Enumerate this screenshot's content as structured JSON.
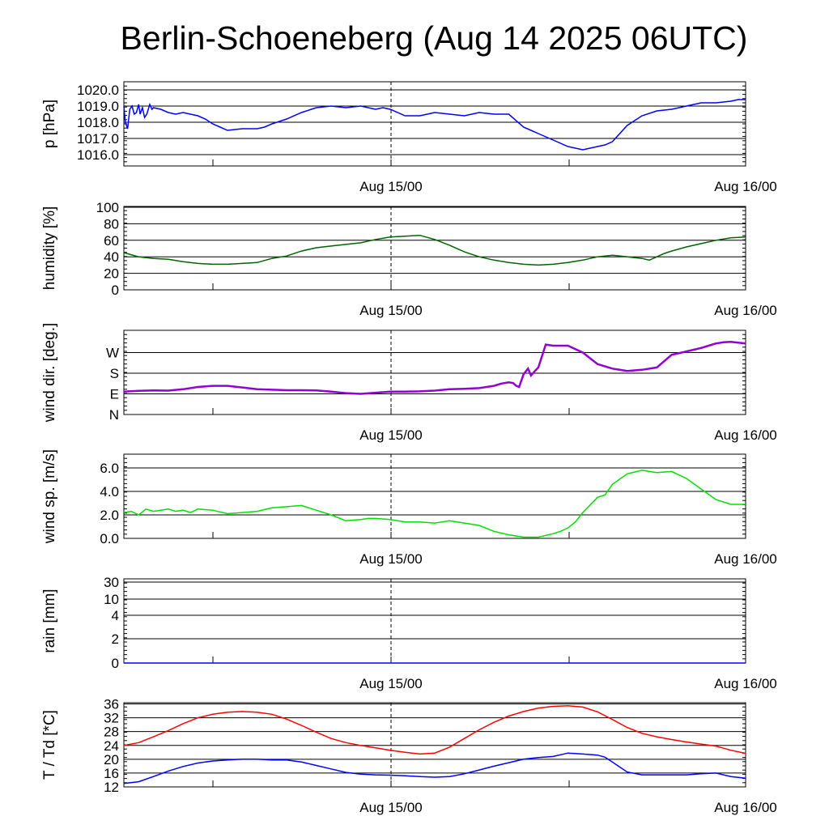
{
  "title": "Berlin-Schoeneberg (Aug 14 2025 06UTC)",
  "x_labels": [
    "Aug 15/00",
    "Aug 16/00"
  ],
  "chart_data": [
    {
      "type": "line",
      "ylabel": "p [hPa]",
      "x_unit": "hours since Aug 14 06UTC",
      "xlim": [
        0,
        42
      ],
      "ylim": [
        1015.3,
        1020.5
      ],
      "yticks": [
        {
          "v": 1016.0,
          "label": "1016.0"
        },
        {
          "v": 1017.0,
          "label": "1017.0"
        },
        {
          "v": 1018.0,
          "label": "1018.0"
        },
        {
          "v": 1019.0,
          "label": "1019.0"
        },
        {
          "v": 1020.0,
          "label": "1020.0"
        }
      ],
      "series": [
        {
          "color": "#0000ff",
          "x": [
            0,
            0.1,
            0.25,
            0.4,
            0.55,
            0.7,
            0.85,
            1.0,
            1.1,
            1.25,
            1.4,
            1.55,
            1.75,
            1.9,
            2.0,
            2.5,
            3.0,
            3.5,
            4.0,
            5.0,
            5.5,
            6.0,
            6.5,
            7.0,
            8.0,
            9.0,
            9.5,
            10.0,
            11.0,
            12.0,
            13.0,
            14.0,
            15.0,
            16.0,
            16.5,
            17.0,
            17.5,
            18.0,
            19.0,
            20.0,
            21.0,
            22.0,
            23.0,
            24.0,
            25.0,
            26.0,
            27.0,
            27.5,
            28.0,
            29.0,
            30.0,
            31.0,
            32.0,
            32.5,
            33.0,
            34.0,
            35.0,
            36.0,
            37.0,
            38.0,
            39.0,
            40.0,
            41.0,
            41.5,
            42.0
          ],
          "y": [
            1019.0,
            1018.0,
            1017.6,
            1018.8,
            1019.0,
            1018.5,
            1018.6,
            1019.1,
            1018.5,
            1018.9,
            1018.3,
            1018.5,
            1019.1,
            1018.8,
            1018.9,
            1018.8,
            1018.6,
            1018.5,
            1018.6,
            1018.4,
            1018.2,
            1017.9,
            1017.7,
            1017.5,
            1017.6,
            1017.6,
            1017.7,
            1017.9,
            1018.2,
            1018.6,
            1018.9,
            1019.0,
            1018.9,
            1019.0,
            1018.9,
            1018.8,
            1018.9,
            1018.8,
            1018.4,
            1018.4,
            1018.6,
            1018.5,
            1018.4,
            1018.6,
            1018.5,
            1018.5,
            1017.7,
            1017.5,
            1017.3,
            1016.9,
            1016.5,
            1016.3,
            1016.5,
            1016.6,
            1016.8,
            1017.8,
            1018.4,
            1018.7,
            1018.8,
            1019.0,
            1019.2,
            1019.2,
            1019.3,
            1019.4,
            1019.4
          ]
        }
      ]
    },
    {
      "type": "line",
      "ylabel": "humidity [%]",
      "xlim": [
        0,
        42
      ],
      "ylim": [
        0,
        100
      ],
      "yticks": [
        {
          "v": 0,
          "label": "0"
        },
        {
          "v": 20,
          "label": "20"
        },
        {
          "v": 40,
          "label": "40"
        },
        {
          "v": 60,
          "label": "60"
        },
        {
          "v": 80,
          "label": "80"
        },
        {
          "v": 100,
          "label": "100"
        }
      ],
      "series": [
        {
          "color": "#006400",
          "x": [
            0,
            1,
            2,
            3,
            4,
            5,
            6,
            7,
            8,
            9,
            10,
            11,
            12,
            13,
            14,
            15,
            16,
            17,
            18,
            19,
            20,
            21,
            22,
            23,
            24,
            25,
            26,
            27,
            28,
            29,
            30,
            31,
            32,
            33,
            34,
            35,
            35.5,
            36,
            36.5,
            37,
            38,
            39,
            40,
            41,
            42
          ],
          "y": [
            45,
            40,
            38,
            37,
            34,
            32,
            31,
            31,
            32,
            33,
            38,
            41,
            47,
            51,
            53,
            55,
            57,
            61,
            64,
            65,
            66,
            61,
            54,
            46,
            40,
            36,
            33,
            31,
            30,
            31,
            33,
            36,
            40,
            42,
            40,
            38,
            36,
            40,
            44,
            47,
            52,
            56,
            60,
            63,
            64
          ]
        }
      ]
    },
    {
      "type": "scatter",
      "ylabel": "wind dir. [deg.]",
      "xlim": [
        0,
        42
      ],
      "ylim": [
        0,
        360
      ],
      "yticks": [
        {
          "v": 0,
          "label": "N"
        },
        {
          "v": 90,
          "label": "E"
        },
        {
          "v": 180,
          "label": "S"
        },
        {
          "v": 270,
          "label": "W"
        }
      ],
      "series": [
        {
          "color": "#9400d3",
          "x": [
            0,
            1,
            2,
            3,
            4,
            5,
            6,
            7,
            8,
            9,
            10,
            11,
            12,
            13,
            14,
            15,
            16,
            17,
            18,
            19,
            20,
            21,
            22,
            23,
            24,
            25,
            25.5,
            26.0,
            26.3,
            26.5,
            26.7,
            27.0,
            27.3,
            27.5,
            27.7,
            28.0,
            28.5,
            29.0,
            30.0,
            31.0,
            32.0,
            33.0,
            34.0,
            35.0,
            36.0,
            37.0,
            38.0,
            39.0,
            39.5,
            40.0,
            40.5,
            41.0,
            42.0
          ],
          "y": [
            100,
            103,
            105,
            104,
            110,
            120,
            125,
            125,
            118,
            110,
            108,
            106,
            106,
            105,
            100,
            93,
            90,
            95,
            100,
            100,
            101,
            104,
            110,
            112,
            115,
            125,
            135,
            140,
            137,
            125,
            120,
            175,
            200,
            170,
            185,
            205,
            305,
            300,
            300,
            270,
            220,
            200,
            190,
            195,
            205,
            260,
            275,
            290,
            300,
            310,
            315,
            317,
            310
          ]
        }
      ]
    },
    {
      "type": "line",
      "ylabel": "wind sp. [m/s]",
      "xlim": [
        0,
        42
      ],
      "ylim": [
        0,
        7
      ],
      "yticks": [
        {
          "v": 0,
          "label": "0.0"
        },
        {
          "v": 2,
          "label": "2.0"
        },
        {
          "v": 4,
          "label": "4.0"
        },
        {
          "v": 6,
          "label": "6.0"
        }
      ],
      "series": [
        {
          "color": "#00e000",
          "x": [
            0,
            0.5,
            1,
            1.5,
            2,
            2.5,
            3,
            3.5,
            4,
            4.5,
            5,
            6,
            7,
            8,
            9,
            10,
            11,
            12,
            13,
            14,
            15,
            16,
            16.5,
            17,
            18,
            19,
            20,
            21,
            22,
            23,
            24,
            25,
            26,
            27,
            28,
            29,
            29.5,
            30,
            30.5,
            31,
            32,
            32.5,
            33,
            34,
            35,
            36,
            37,
            38,
            39,
            40,
            41,
            42
          ],
          "y": [
            2.2,
            2.3,
            2.0,
            2.5,
            2.3,
            2.4,
            2.5,
            2.3,
            2.4,
            2.2,
            2.5,
            2.4,
            2.1,
            2.2,
            2.3,
            2.6,
            2.7,
            2.8,
            2.4,
            2.0,
            1.5,
            1.6,
            1.7,
            1.7,
            1.6,
            1.4,
            1.4,
            1.3,
            1.5,
            1.3,
            1.1,
            0.6,
            0.3,
            0.1,
            0.1,
            0.4,
            0.6,
            0.9,
            1.4,
            2.2,
            3.5,
            3.7,
            4.6,
            5.5,
            5.8,
            5.6,
            5.7,
            5.1,
            4.2,
            3.3,
            2.9,
            2.9
          ]
        }
      ]
    },
    {
      "type": "line",
      "ylabel": "rain [mm]",
      "xlim": [
        0,
        42
      ],
      "yscale": "nonlinear",
      "yticks": [
        {
          "v": 0,
          "label": "0"
        },
        {
          "v": 2,
          "label": "2"
        },
        {
          "v": 4,
          "label": "4"
        },
        {
          "v": 10,
          "label": "10"
        },
        {
          "v": 30,
          "label": "30"
        }
      ],
      "series": [
        {
          "color": "#0000ff",
          "x": [
            0,
            42
          ],
          "y": [
            0,
            0
          ]
        }
      ]
    },
    {
      "type": "line",
      "ylabel": "T / Td [*C]",
      "xlim": [
        0,
        42
      ],
      "ylim": [
        12,
        36
      ],
      "yticks": [
        {
          "v": 12,
          "label": "12"
        },
        {
          "v": 16,
          "label": "16"
        },
        {
          "v": 20,
          "label": "20"
        },
        {
          "v": 24,
          "label": "24"
        },
        {
          "v": 28,
          "label": "28"
        },
        {
          "v": 32,
          "label": "32"
        },
        {
          "v": 36,
          "label": "36"
        }
      ],
      "series": [
        {
          "color": "#ff0000",
          "x": [
            0,
            1,
            2,
            3,
            4,
            5,
            6,
            7,
            8,
            9,
            10,
            11,
            12,
            13,
            14,
            15,
            16,
            17,
            18,
            19,
            20,
            21,
            22,
            23,
            24,
            25,
            26,
            27,
            28,
            29,
            30,
            31,
            32,
            33,
            34,
            35,
            36,
            37,
            38,
            39,
            40,
            41,
            42
          ],
          "y": [
            24,
            24.8,
            26.5,
            28.3,
            30.3,
            32,
            33,
            33.6,
            33.8,
            33.6,
            33,
            31.6,
            29.8,
            27.8,
            26,
            24.8,
            24,
            23.3,
            22.6,
            22,
            21.5,
            21.8,
            23.5,
            26,
            28.5,
            30.7,
            32.5,
            33.8,
            34.8,
            35.3,
            35.5,
            35.1,
            33.7,
            31.5,
            29.2,
            27.5,
            26.5,
            25.7,
            25,
            24.4,
            23.8,
            22.6,
            21.7
          ]
        },
        {
          "color": "#0000ff",
          "x": [
            0,
            1,
            2,
            3,
            4,
            5,
            6,
            7,
            8,
            9,
            10,
            11,
            12,
            13,
            14,
            15,
            16,
            17,
            18,
            19,
            20,
            21,
            22,
            23,
            24,
            25,
            26,
            27,
            28,
            29,
            30,
            31,
            32,
            32.5,
            33,
            34,
            35,
            36,
            37,
            38,
            39,
            40,
            41,
            42
          ],
          "y": [
            13,
            13.5,
            15,
            16.6,
            17.9,
            18.9,
            19.5,
            19.8,
            20,
            20,
            19.8,
            19.8,
            19.2,
            18.2,
            17.2,
            16.2,
            15.7,
            15.5,
            15.4,
            15.2,
            15,
            14.8,
            15,
            15.8,
            16.9,
            18,
            19,
            20,
            20.5,
            20.8,
            21.8,
            21.5,
            21.2,
            20.6,
            19.2,
            16.3,
            15.5,
            15.5,
            15.5,
            15.5,
            15.8,
            16,
            15,
            14.5
          ]
        }
      ]
    }
  ]
}
